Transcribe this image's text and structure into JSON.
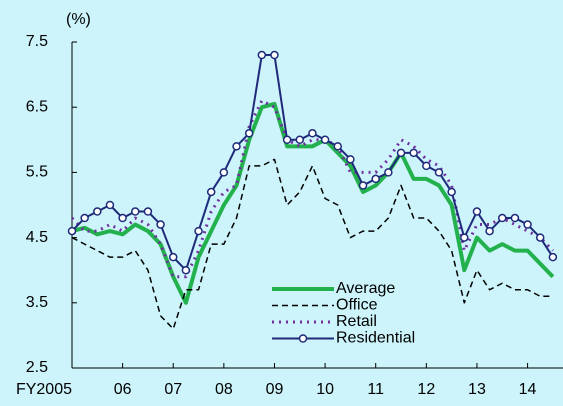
{
  "chart_data": {
    "type": "line",
    "y_label": "(%)",
    "x": [
      2005,
      2005.25,
      2005.5,
      2005.75,
      2006,
      2006.25,
      2006.5,
      2006.75,
      2007,
      2007.25,
      2007.5,
      2007.75,
      2008,
      2008.25,
      2008.5,
      2008.75,
      2009,
      2009.25,
      2009.5,
      2009.75,
      2010,
      2010.25,
      2010.5,
      2010.75,
      2011,
      2011.25,
      2011.5,
      2011.75,
      2012,
      2012.25,
      2012.5,
      2012.75,
      2013,
      2013.25,
      2013.5,
      2013.75,
      2014,
      2014.25,
      2014.5
    ],
    "xlim": [
      2005,
      2014.7
    ],
    "xticks": [
      {
        "value": 2005,
        "label": "FY2005"
      },
      {
        "value": 2006,
        "label": "06"
      },
      {
        "value": 2007,
        "label": "07"
      },
      {
        "value": 2008,
        "label": "08"
      },
      {
        "value": 2009,
        "label": "09"
      },
      {
        "value": 2010,
        "label": "10"
      },
      {
        "value": 2011,
        "label": "11"
      },
      {
        "value": 2012,
        "label": "12"
      },
      {
        "value": 2013,
        "label": "13"
      },
      {
        "value": 2014,
        "label": "14"
      }
    ],
    "ylim": [
      2.5,
      7.5
    ],
    "yticks": [
      2.5,
      3.5,
      4.5,
      5.5,
      6.5,
      7.5
    ],
    "grid": false,
    "legend": "lower right",
    "series": [
      {
        "name": "Average",
        "color": "#22b14c",
        "dash": "solid",
        "width": 4,
        "marker": "none",
        "values": [
          4.6,
          4.65,
          4.55,
          4.6,
          4.55,
          4.7,
          4.6,
          4.4,
          3.9,
          3.5,
          4.2,
          4.6,
          5.0,
          5.3,
          6.0,
          6.5,
          6.55,
          5.9,
          5.9,
          5.9,
          6.0,
          5.8,
          5.6,
          5.2,
          5.3,
          5.5,
          5.8,
          5.4,
          5.4,
          5.3,
          5.0,
          4.0,
          4.5,
          4.3,
          4.4,
          4.3,
          4.3,
          4.1,
          3.9
        ]
      },
      {
        "name": "Office",
        "color": "#000000",
        "dash": "dashed",
        "width": 1.5,
        "marker": "none",
        "values": [
          4.5,
          4.4,
          4.3,
          4.2,
          4.2,
          4.3,
          4.0,
          3.3,
          3.1,
          3.7,
          3.7,
          4.4,
          4.4,
          4.8,
          5.6,
          5.6,
          5.7,
          5.0,
          5.2,
          5.6,
          5.1,
          5.0,
          4.5,
          4.6,
          4.6,
          4.8,
          5.3,
          4.8,
          4.8,
          4.6,
          4.3,
          3.5,
          4.0,
          3.7,
          3.8,
          3.7,
          3.7,
          3.6,
          3.6
        ]
      },
      {
        "name": "Retail",
        "color": "#7030a0",
        "dash": "dotted",
        "width": 3,
        "marker": "none",
        "values": [
          4.8,
          4.6,
          4.6,
          4.7,
          4.6,
          4.8,
          4.7,
          4.4,
          3.9,
          3.9,
          4.3,
          4.9,
          5.2,
          5.3,
          6.2,
          6.6,
          6.5,
          6.0,
          5.9,
          6.0,
          6.0,
          5.9,
          5.5,
          5.5,
          5.5,
          5.7,
          6.0,
          5.9,
          5.7,
          5.6,
          5.3,
          4.3,
          4.7,
          4.7,
          4.8,
          4.7,
          4.6,
          4.5,
          4.3
        ]
      },
      {
        "name": "Residential",
        "color": "#1f2a7a",
        "dash": "solid",
        "width": 2,
        "marker": "circle",
        "values": [
          4.6,
          4.8,
          4.9,
          5.0,
          4.8,
          4.9,
          4.9,
          4.7,
          4.2,
          4.0,
          4.6,
          5.2,
          5.5,
          5.9,
          6.1,
          7.3,
          7.3,
          6.0,
          6.0,
          6.1,
          6.0,
          5.9,
          5.7,
          5.3,
          5.4,
          5.5,
          5.8,
          5.8,
          5.6,
          5.5,
          5.2,
          4.5,
          4.9,
          4.6,
          4.8,
          4.8,
          4.7,
          4.5,
          4.2
        ]
      }
    ]
  }
}
